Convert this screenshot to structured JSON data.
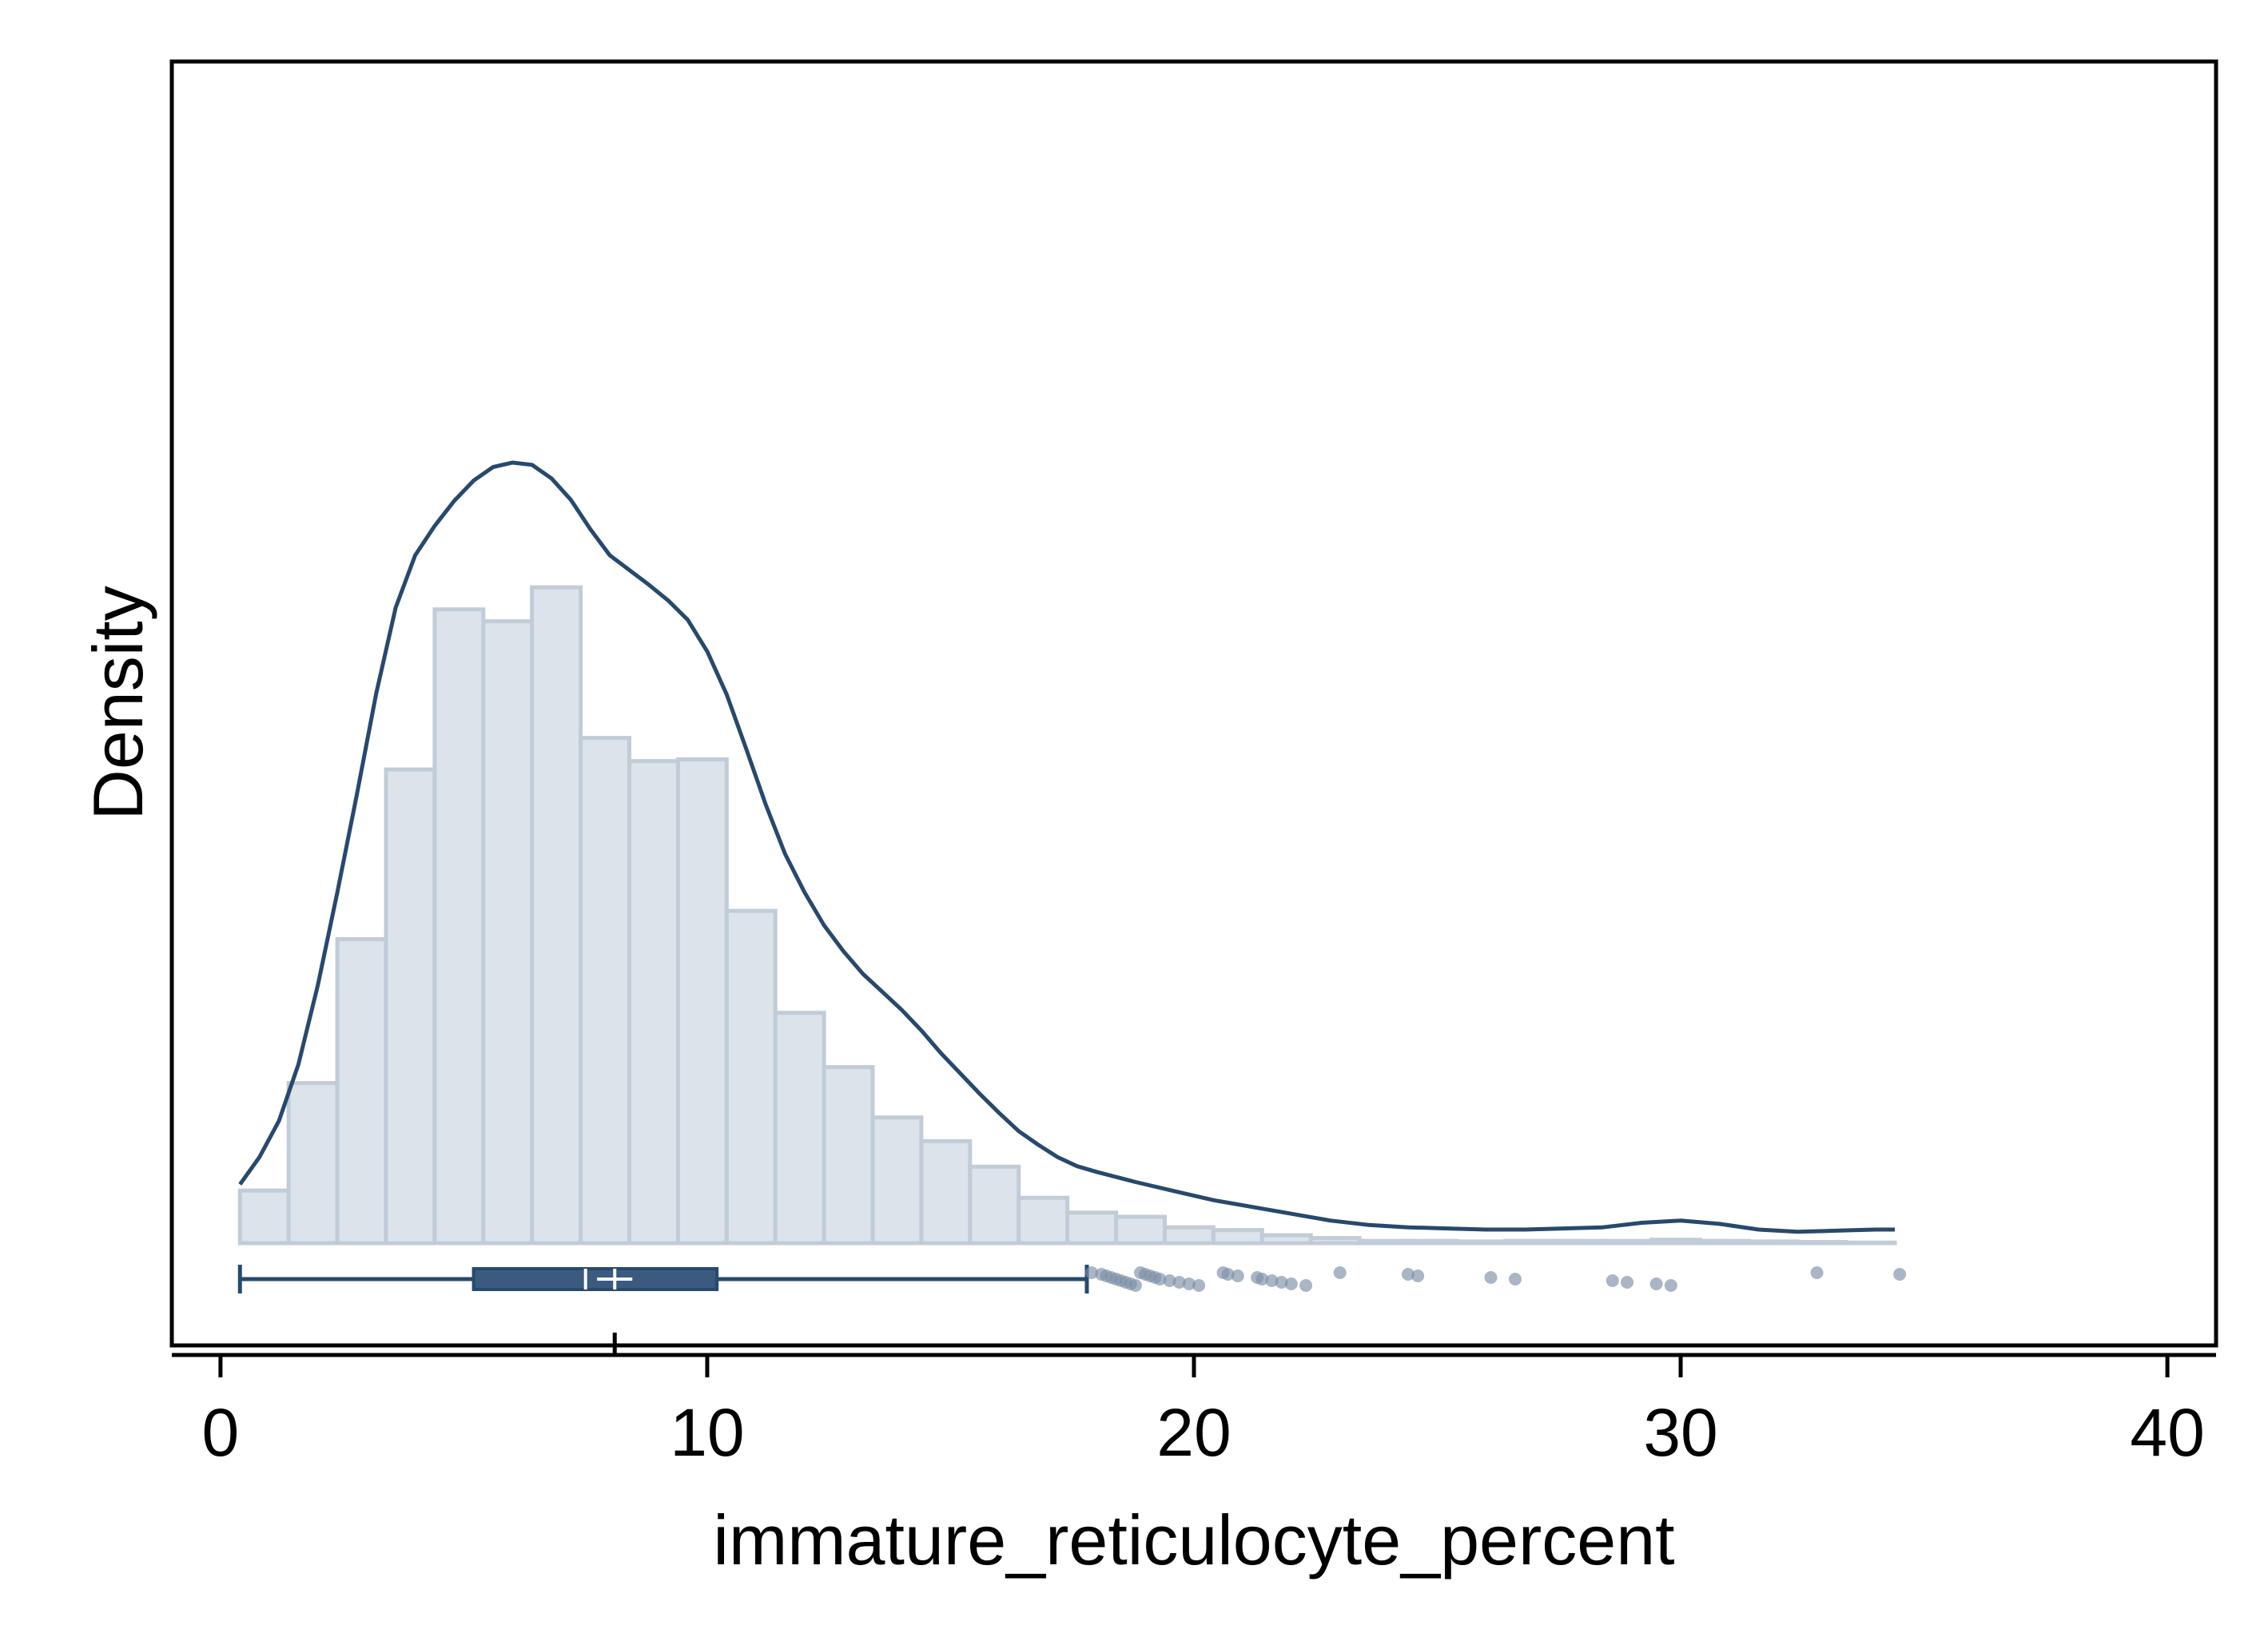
{
  "chart_data": {
    "type": "histogram",
    "xlabel": "immature_reticulocyte_percent",
    "ylabel": "Density",
    "xlim": [
      -1,
      41
    ],
    "ylim": [
      0,
      1
    ],
    "y_ticks_shown": false,
    "x_ticks": [
      0,
      10,
      20,
      30,
      40
    ],
    "x_tick_labels": [
      "0",
      "10",
      "20",
      "30",
      "40"
    ],
    "mean_tick": 8.1,
    "grid": false,
    "legend": "none",
    "colors": {
      "bar_fill": "#dde3ea",
      "bar_stroke": "#c0ccd8",
      "line": "#27496d",
      "box": "#3a5a80",
      "outlier": "#7c8fa6"
    },
    "histogram": {
      "bin_width": 1,
      "bin_start": 0.4,
      "heights": [
        0.0465,
        0.1415,
        0.2687,
        0.4187,
        0.5602,
        0.5497,
        0.5797,
        0.4466,
        0.4261,
        0.4276,
        0.2937,
        0.2036,
        0.1556,
        0.1111,
        0.0901,
        0.0676,
        0.0401,
        0.027,
        0.0233,
        0.014,
        0.0115,
        0.007,
        0.0045,
        0.002,
        0.002,
        0.0015,
        0.002,
        0.002,
        0.002,
        0.003,
        0.002,
        0.0015,
        0.001,
        0.0005
      ]
    },
    "density_curve": {
      "x": [
        0.4,
        0.8,
        1.2,
        1.6,
        2.0,
        2.4,
        2.8,
        3.2,
        3.6,
        4.0,
        4.4,
        4.8,
        5.2,
        5.6,
        6.0,
        6.4,
        6.8,
        7.2,
        7.6,
        8.0,
        8.4,
        8.8,
        9.2,
        9.6,
        10.0,
        10.4,
        10.8,
        11.2,
        11.6,
        12.0,
        12.4,
        12.8,
        13.2,
        13.6,
        14.0,
        14.4,
        14.8,
        15.2,
        15.6,
        16.0,
        16.4,
        16.8,
        17.2,
        17.6,
        18.0,
        18.8,
        19.6,
        20.4,
        21.2,
        22.0,
        22.8,
        23.6,
        24.4,
        25.2,
        26.0,
        26.8,
        27.6,
        28.4,
        29.2,
        30.0,
        30.8,
        31.6,
        32.4,
        33.2,
        34.0,
        34.4
      ],
      "y": [
        0.052,
        0.076,
        0.108,
        0.158,
        0.228,
        0.31,
        0.396,
        0.486,
        0.562,
        0.608,
        0.634,
        0.656,
        0.674,
        0.686,
        0.69,
        0.688,
        0.676,
        0.657,
        0.631,
        0.608,
        0.595,
        0.582,
        0.568,
        0.551,
        0.523,
        0.485,
        0.437,
        0.388,
        0.344,
        0.31,
        0.281,
        0.258,
        0.238,
        0.222,
        0.206,
        0.188,
        0.168,
        0.15,
        0.132,
        0.115,
        0.099,
        0.087,
        0.076,
        0.068,
        0.063,
        0.054,
        0.046,
        0.038,
        0.032,
        0.026,
        0.02,
        0.016,
        0.014,
        0.013,
        0.012,
        0.012,
        0.013,
        0.014,
        0.018,
        0.02,
        0.017,
        0.012,
        0.01,
        0.011,
        0.012,
        0.012
      ]
    },
    "boxplot": {
      "whisker_low": 0.4,
      "q1": 5.2,
      "median": 7.5,
      "mean": 8.1,
      "q3": 10.2,
      "whisker_high": 17.8,
      "outliers": [
        17.9,
        18.1,
        18.2,
        18.3,
        18.4,
        18.5,
        18.6,
        18.7,
        18.8,
        18.9,
        19.0,
        19.1,
        19.2,
        19.3,
        19.5,
        19.7,
        19.9,
        20.1,
        20.6,
        20.7,
        20.9,
        21.3,
        21.4,
        21.6,
        21.8,
        22.0,
        22.3,
        23.0,
        24.4,
        24.6,
        26.1,
        26.6,
        28.6,
        28.9,
        29.5,
        29.8,
        32.8,
        34.5
      ]
    }
  }
}
